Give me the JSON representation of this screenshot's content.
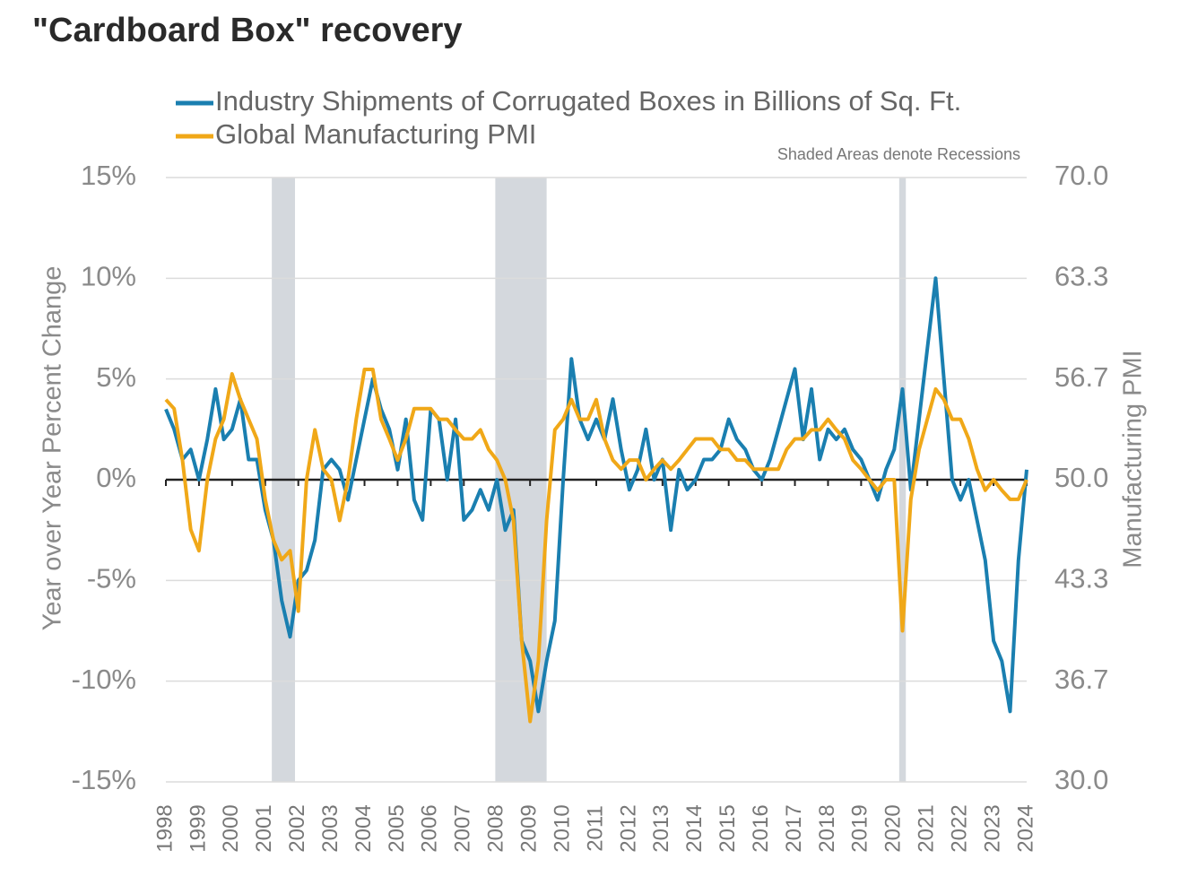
{
  "chart_data": {
    "type": "line",
    "title": "\"Cardboard Box\" recovery",
    "annotation": "Shaded Areas denote Recessions",
    "y_label": "Year over Year Percent Change",
    "y2_label": "Manufacturing PMI",
    "recessions": [
      [
        2001.2,
        2001.9
      ],
      [
        2007.95,
        2009.5
      ],
      [
        2020.15,
        2020.35
      ]
    ],
    "x": [
      1998,
      1998.25,
      1998.5,
      1998.75,
      1999,
      1999.25,
      1999.5,
      1999.75,
      2000,
      2000.25,
      2000.5,
      2000.75,
      2001,
      2001.25,
      2001.5,
      2001.75,
      2002,
      2002.25,
      2002.5,
      2002.75,
      2003,
      2003.25,
      2003.5,
      2003.75,
      2004,
      2004.25,
      2004.5,
      2004.75,
      2005,
      2005.25,
      2005.5,
      2005.75,
      2006,
      2006.25,
      2006.5,
      2006.75,
      2007,
      2007.25,
      2007.5,
      2007.75,
      2008,
      2008.25,
      2008.5,
      2008.75,
      2009,
      2009.25,
      2009.5,
      2009.75,
      2010,
      2010.25,
      2010.5,
      2010.75,
      2011,
      2011.25,
      2011.5,
      2011.75,
      2012,
      2012.25,
      2012.5,
      2012.75,
      2013,
      2013.25,
      2013.5,
      2013.75,
      2014,
      2014.25,
      2014.5,
      2014.75,
      2015,
      2015.25,
      2015.5,
      2015.75,
      2016,
      2016.25,
      2016.5,
      2016.75,
      2017,
      2017.25,
      2017.5,
      2017.75,
      2018,
      2018.25,
      2018.5,
      2018.75,
      2019,
      2019.25,
      2019.5,
      2019.75,
      2020,
      2020.25,
      2020.5,
      2020.75,
      2021,
      2021.25,
      2021.5,
      2021.75,
      2022,
      2022.25,
      2022.5,
      2022.75,
      2023,
      2023.25,
      2023.5,
      2023.75,
      2024
    ],
    "series": [
      {
        "name": "Industry Shipments of Corrugated Boxes in Billions of Sq. Ft.",
        "color": "#1a7fb0",
        "axis": "y",
        "values": [
          3.5,
          2.5,
          1,
          1.5,
          0,
          2,
          4.5,
          2,
          2.5,
          4,
          1,
          1,
          -1.5,
          -3,
          -6,
          -7.8,
          -5,
          -4.5,
          -3,
          0.5,
          1,
          0.5,
          -1,
          1,
          3,
          5,
          3.5,
          2.5,
          0.5,
          3,
          -1,
          -2,
          3.5,
          3,
          0,
          3,
          -2,
          -1.5,
          -0.5,
          -1.5,
          0,
          -2.5,
          -1.5,
          -8,
          -9,
          -11.5,
          -9,
          -7,
          0,
          6,
          3,
          2,
          3,
          2,
          4,
          1.5,
          -0.5,
          0.5,
          2.5,
          0,
          1,
          -2.5,
          0.5,
          -0.5,
          0,
          1,
          1,
          1.5,
          3,
          2,
          1.5,
          0.5,
          0,
          1,
          2.5,
          4,
          5.5,
          2,
          4.5,
          1,
          2.5,
          2,
          2.5,
          1.5,
          1,
          0,
          -1,
          0.5,
          1.5,
          4.5,
          -0.5,
          3,
          6.5,
          10,
          5,
          0,
          -1,
          0,
          -2,
          -4,
          -8,
          -9,
          -11.5,
          -4,
          0.5
        ]
      },
      {
        "name": "Global Manufacturing PMI",
        "color": "#f0a818",
        "axis": "y2",
        "values": [
          55.3,
          54.7,
          51.3,
          46.7,
          45.3,
          50,
          52.7,
          54,
          57,
          55.3,
          54,
          52.7,
          48.7,
          46,
          44.7,
          45.3,
          41.3,
          50,
          53.3,
          50.7,
          50,
          47.3,
          50,
          54,
          57.3,
          57.3,
          54,
          52.7,
          51.3,
          52.7,
          54.7,
          54.7,
          54.7,
          54,
          54,
          53.3,
          52.7,
          52.7,
          53.3,
          52,
          51.3,
          50,
          47.3,
          39.3,
          34,
          38,
          47.3,
          53.3,
          54,
          55.3,
          54,
          54,
          55.3,
          52.7,
          51.3,
          50.7,
          51.3,
          51.3,
          50,
          50.7,
          51.3,
          50.7,
          51.3,
          52,
          52.7,
          52.7,
          52.7,
          52,
          52,
          51.3,
          51.3,
          50.7,
          50.7,
          50.7,
          50.7,
          52,
          52.7,
          52.7,
          53.3,
          53.3,
          54,
          53.3,
          52.7,
          51.3,
          50.7,
          50,
          49.3,
          50,
          50,
          40,
          48.7,
          52,
          54,
          56,
          55.3,
          54,
          54,
          52.7,
          50.7,
          49.3,
          50,
          49.3,
          48.7,
          48.7,
          50
        ]
      }
    ],
    "xlim": [
      1998,
      2024
    ],
    "xticks": [
      1998,
      1999,
      2000,
      2001,
      2002,
      2003,
      2004,
      2005,
      2006,
      2007,
      2008,
      2009,
      2010,
      2011,
      2012,
      2013,
      2014,
      2015,
      2016,
      2017,
      2018,
      2019,
      2020,
      2021,
      2022,
      2023,
      2024
    ],
    "ylim": [
      -15,
      15
    ],
    "yticks": [
      {
        "value": 15,
        "label": "15%"
      },
      {
        "value": 10,
        "label": "10%"
      },
      {
        "value": 5,
        "label": "5%"
      },
      {
        "value": 0,
        "label": "0%"
      },
      {
        "value": -5,
        "label": "-5%"
      },
      {
        "value": -10,
        "label": "-10%"
      },
      {
        "value": -15,
        "label": "-15%"
      }
    ],
    "y2lim": [
      30,
      70
    ],
    "y2ticks": [
      {
        "value": 70,
        "label": "70.0"
      },
      {
        "value": 63.333,
        "label": "63.3"
      },
      {
        "value": 56.667,
        "label": "56.7"
      },
      {
        "value": 50,
        "label": "50.0"
      },
      {
        "value": 43.333,
        "label": "43.3"
      },
      {
        "value": 36.667,
        "label": "36.7"
      },
      {
        "value": 30,
        "label": "30.0"
      }
    ],
    "grid": true
  }
}
